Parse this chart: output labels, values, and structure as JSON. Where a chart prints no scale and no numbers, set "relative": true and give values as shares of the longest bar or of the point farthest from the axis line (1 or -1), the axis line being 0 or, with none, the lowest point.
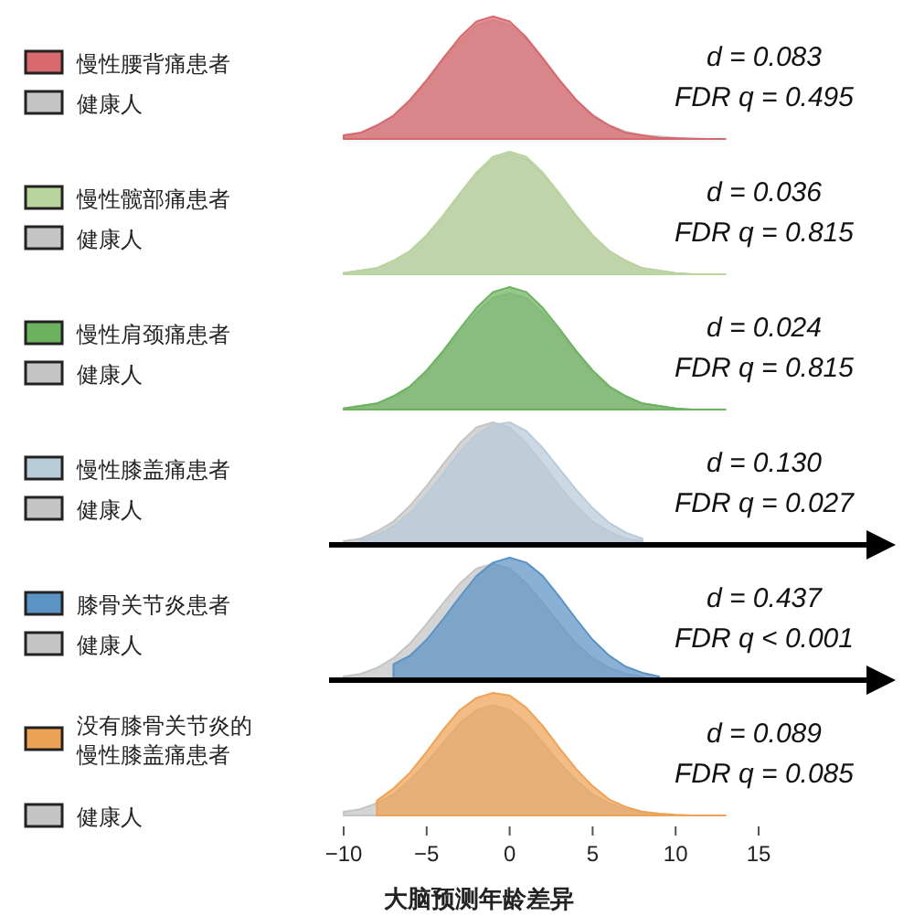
{
  "chart_data": [
    {
      "type": "area",
      "relative": true,
      "tick_labels": false,
      "legend": "left",
      "x": [
        -10,
        -9,
        -8,
        -7,
        -6,
        -5,
        -4,
        -3,
        -2,
        -1,
        0,
        1,
        2,
        3,
        4,
        5,
        6,
        7,
        8,
        9,
        10,
        11,
        12,
        13
      ],
      "series": [
        {
          "name": "慢性腰背痛患者",
          "color": "#d9686c",
          "values": [
            0.03,
            0.05,
            0.11,
            0.19,
            0.32,
            0.48,
            0.66,
            0.83,
            0.96,
            1,
            0.96,
            0.83,
            0.66,
            0.48,
            0.32,
            0.19,
            0.11,
            0.05,
            0.03,
            0.01,
            0.005,
            0,
            0,
            0
          ]
        },
        {
          "name": "健康人",
          "color": "#c4c4c4",
          "values": [
            0.03,
            0.05,
            0.11,
            0.19,
            0.31,
            0.47,
            0.64,
            0.8,
            0.93,
            0.97,
            0.93,
            0.81,
            0.65,
            0.48,
            0.32,
            0.2,
            0.11,
            0.06,
            0.03,
            0.02,
            0.01,
            0.005,
            0,
            0
          ]
        }
      ],
      "annotations": [
        "d = 0.083",
        "FDR q = 0.495"
      ]
    },
    {
      "type": "area",
      "relative": true,
      "tick_labels": false,
      "legend": "left",
      "x": [
        -10,
        -9,
        -8,
        -7,
        -6,
        -5,
        -4,
        -3,
        -2,
        -1,
        0,
        1,
        2,
        3,
        4,
        5,
        6,
        7,
        8,
        9,
        10,
        11,
        12,
        13
      ],
      "series": [
        {
          "name": "慢性髋部痛患者",
          "color": "#b9d49d",
          "values": [
            0.01,
            0.03,
            0.05,
            0.11,
            0.19,
            0.32,
            0.48,
            0.66,
            0.83,
            0.96,
            1,
            0.96,
            0.83,
            0.66,
            0.48,
            0.32,
            0.19,
            0.11,
            0.05,
            0.03,
            0.01,
            0,
            0,
            0
          ]
        },
        {
          "name": "健康人",
          "color": "#c4c4c4",
          "values": [
            0.01,
            0.03,
            0.05,
            0.11,
            0.19,
            0.31,
            0.47,
            0.65,
            0.81,
            0.94,
            0.98,
            0.94,
            0.81,
            0.65,
            0.47,
            0.31,
            0.19,
            0.11,
            0.05,
            0.03,
            0.01,
            0,
            0,
            0
          ]
        }
      ],
      "annotations": [
        "d = 0.036",
        "FDR q = 0.815"
      ]
    },
    {
      "type": "area",
      "relative": true,
      "tick_labels": false,
      "legend": "left",
      "x": [
        -10,
        -9,
        -8,
        -7,
        -6,
        -5,
        -4,
        -3,
        -2,
        -1,
        0,
        1,
        2,
        3,
        4,
        5,
        6,
        7,
        8,
        9,
        10,
        11,
        12,
        13
      ],
      "series": [
        {
          "name": "慢性肩颈痛患者",
          "color": "#6db35f",
          "values": [
            0.01,
            0.03,
            0.05,
            0.11,
            0.19,
            0.32,
            0.48,
            0.66,
            0.83,
            0.96,
            1,
            0.96,
            0.83,
            0.66,
            0.48,
            0.32,
            0.19,
            0.11,
            0.05,
            0.03,
            0.01,
            0,
            0,
            0
          ]
        },
        {
          "name": "健康人",
          "color": "#c4c4c4",
          "values": [
            0.01,
            0.03,
            0.05,
            0.1,
            0.18,
            0.3,
            0.46,
            0.63,
            0.79,
            0.91,
            0.95,
            0.91,
            0.79,
            0.63,
            0.46,
            0.3,
            0.18,
            0.1,
            0.05,
            0.03,
            0.01,
            0,
            0,
            0
          ]
        }
      ],
      "annotations": [
        "d = 0.024",
        "FDR q = 0.815"
      ]
    },
    {
      "type": "area",
      "relative": true,
      "tick_labels": false,
      "legend": "left",
      "x": [
        -10,
        -9,
        -8,
        -7,
        -6,
        -5,
        -4,
        -3,
        -2,
        -1,
        0,
        1,
        2,
        3,
        4,
        5,
        6,
        7,
        8
      ],
      "series": [
        {
          "name": "慢性膝盖痛患者",
          "color": "#b8cbd9",
          "values": [
            null,
            0.04,
            0.08,
            0.15,
            0.26,
            0.41,
            0.58,
            0.76,
            0.9,
            0.98,
            1,
            0.93,
            0.79,
            0.62,
            0.45,
            0.3,
            0.18,
            0.1,
            0.05
          ]
        },
        {
          "name": "健康人",
          "color": "#c4c4c4",
          "values": [
            0.03,
            0.05,
            0.11,
            0.19,
            0.32,
            0.48,
            0.66,
            0.83,
            0.96,
            1,
            0.96,
            0.83,
            0.66,
            0.48,
            0.32,
            0.19,
            0.11,
            0.05,
            0.03
          ]
        }
      ],
      "annotations": [
        "d = 0.130",
        "FDR q = 0.027"
      ]
    },
    {
      "type": "area",
      "relative": true,
      "tick_labels": false,
      "legend": "left",
      "x": [
        -10,
        -9,
        -8,
        -7,
        -6,
        -5,
        -4,
        -3,
        -2,
        -1,
        0,
        1,
        2,
        3,
        4,
        5,
        6,
        7,
        8,
        9
      ],
      "series": [
        {
          "name": "膝骨关节炎患者",
          "color": "#5b93c5",
          "values": [
            null,
            null,
            null,
            0.13,
            0.2,
            0.33,
            0.5,
            0.68,
            0.85,
            0.96,
            1,
            0.96,
            0.85,
            0.68,
            0.5,
            0.33,
            0.2,
            0.11,
            0.06,
            0.03
          ]
        },
        {
          "name": "健康人",
          "color": "#c4c4c4",
          "values": [
            0.03,
            0.05,
            0.1,
            0.18,
            0.3,
            0.46,
            0.63,
            0.79,
            0.91,
            0.95,
            0.91,
            0.79,
            0.63,
            0.46,
            0.3,
            0.18,
            0.1,
            0.05,
            0.03,
            null
          ]
        }
      ],
      "annotations": [
        "d = 0.437",
        "FDR q < 0.001"
      ]
    },
    {
      "type": "area",
      "relative": true,
      "xlim": [
        -10,
        15
      ],
      "xticks": [
        {
          "value": -10,
          "label": "−10"
        },
        {
          "value": -5,
          "label": "−5"
        },
        0,
        5,
        10,
        15
      ],
      "tick_labels": "x",
      "xlabel": "大脑预测年龄差异",
      "legend": "left",
      "x": [
        -10,
        -9,
        -8,
        -7,
        -6,
        -5,
        -4,
        -3,
        -2,
        -1,
        0,
        1,
        2,
        3,
        4,
        5,
        6,
        7,
        8,
        9,
        10,
        11,
        12,
        13
      ],
      "series": [
        {
          "name": "没有膝骨关节炎的慢性膝盖痛患者",
          "color": "#eea255",
          "values": [
            null,
            null,
            0.12,
            0.22,
            0.35,
            0.52,
            0.7,
            0.86,
            0.96,
            1,
            0.98,
            0.88,
            0.73,
            0.55,
            0.38,
            0.24,
            0.13,
            0.07,
            0.03,
            0.015,
            0.005,
            0,
            0,
            0
          ]
        },
        {
          "name": "健康人",
          "color": "#c4c4c4",
          "values": [
            0.03,
            0.05,
            0.1,
            0.17,
            0.29,
            0.43,
            0.59,
            0.75,
            0.86,
            0.9,
            0.86,
            0.75,
            0.59,
            0.43,
            0.29,
            0.17,
            0.1,
            0.05,
            0.03,
            0.01,
            0,
            0,
            0,
            0
          ]
        }
      ],
      "annotations": [
        "d = 0.089",
        "FDR q = 0.085"
      ]
    }
  ]
}
